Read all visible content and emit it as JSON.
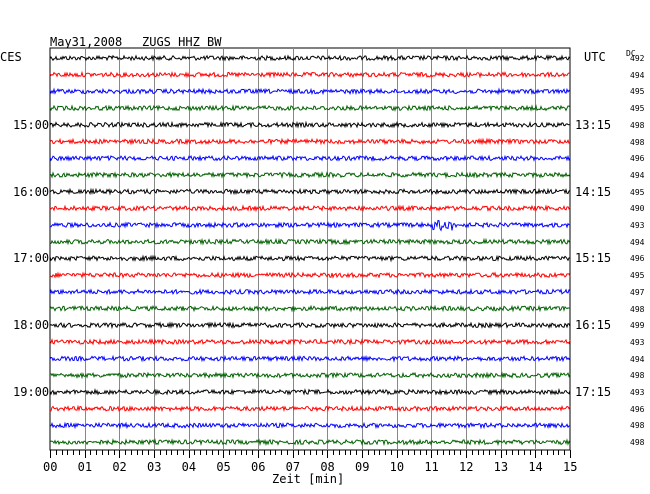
{
  "header": {
    "date": "May31,2008",
    "station": "ZUGS HHZ BW"
  },
  "left_tz": "CES",
  "right_tz": "UTC",
  "dc_label": "DC",
  "left_times": [
    "15:00",
    "16:00",
    "17:00",
    "18:00",
    "19:00"
  ],
  "right_times": [
    "13:15",
    "14:15",
    "15:15",
    "16:15",
    "17:15"
  ],
  "colors": {
    "trace_cycle": [
      "#000000",
      "#ff0000",
      "#0000ff",
      "#006000"
    ]
  },
  "chart_data": {
    "type": "line",
    "title": "May31,2008   ZUGS HHZ BW",
    "xlabel": "Zeit [min]",
    "xlim": [
      0,
      15
    ],
    "x_ticks": [
      "00",
      "01",
      "02",
      "03",
      "04",
      "05",
      "06",
      "07",
      "08",
      "09",
      "10",
      "11",
      "12",
      "13",
      "14",
      "15"
    ],
    "traces_count": 24,
    "dc_offsets": [
      492,
      494,
      495,
      495,
      498,
      498,
      496,
      494,
      495,
      490,
      493,
      494,
      496,
      495,
      497,
      498,
      499,
      493,
      494,
      498,
      493,
      496,
      498,
      498
    ],
    "events": [
      {
        "trace_index": 10,
        "x_start": 11.0,
        "x_end": 11.6,
        "amplitude": "elevated"
      }
    ]
  }
}
